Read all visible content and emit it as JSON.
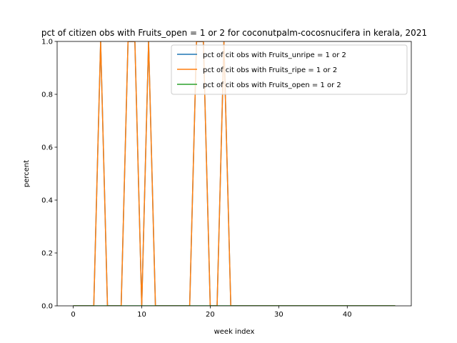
{
  "chart_data": {
    "type": "line",
    "title": "pct of citizen obs with Fruits_open = 1 or 2 for coconutpalm-cocosnucifera in kerala, 2021",
    "xlabel": "week index",
    "ylabel": "percent",
    "xlim": [
      -2.35,
      49.35
    ],
    "ylim": [
      0,
      1.0
    ],
    "xticks": [
      0,
      10,
      20,
      30,
      40
    ],
    "yticks": [
      0.0,
      0.2,
      0.4,
      0.6,
      0.8,
      1.0
    ],
    "xtick_labels": [
      "0",
      "10",
      "20",
      "30",
      "40"
    ],
    "ytick_labels": [
      "0.0",
      "0.2",
      "0.4",
      "0.6",
      "0.8",
      "1.0"
    ],
    "grid": false,
    "legend_position": "top-right",
    "x": [
      0,
      1,
      2,
      3,
      4,
      5,
      6,
      7,
      8,
      9,
      10,
      11,
      12,
      13,
      14,
      15,
      16,
      17,
      18,
      19,
      20,
      21,
      22,
      23,
      24,
      25,
      26,
      27,
      28,
      29,
      30,
      31,
      32,
      33,
      34,
      35,
      36,
      37,
      38,
      39,
      40,
      41,
      42,
      43,
      44,
      45,
      46,
      47
    ],
    "series": [
      {
        "name": "pct of cit obs with Fruits_unripe = 1 or 2",
        "color": "#1f77b4",
        "values": [
          0,
          0,
          0,
          0,
          1,
          0,
          0,
          0,
          1,
          1,
          0,
          1,
          0,
          0,
          0,
          0,
          0,
          0,
          1,
          1,
          0,
          0,
          1,
          0,
          0,
          0,
          0,
          0,
          0,
          0,
          0,
          0,
          0,
          0,
          0,
          0,
          0,
          0,
          0,
          0,
          0,
          0,
          0,
          0,
          0,
          0,
          0,
          0
        ]
      },
      {
        "name": "pct of cit obs with Fruits_ripe = 1 or 2",
        "color": "#ff7f0e",
        "values": [
          0,
          0,
          0,
          0,
          1,
          0,
          0,
          0,
          1,
          1,
          0,
          1,
          0,
          0,
          0,
          0,
          0,
          0,
          1,
          1,
          0,
          0,
          1,
          0,
          0,
          0,
          0,
          0,
          0,
          0,
          0,
          0,
          0,
          0,
          0,
          0,
          0,
          0,
          0,
          0,
          0,
          0,
          0,
          0,
          0,
          0,
          0,
          0
        ]
      },
      {
        "name": "pct of cit obs with Fruits_open = 1 or 2",
        "color": "#2ca02c",
        "values": [
          0,
          0,
          0,
          0,
          0,
          0,
          0,
          0,
          0,
          0,
          0,
          0,
          0,
          0,
          0,
          0,
          0,
          0,
          0,
          0,
          0,
          0,
          0,
          0,
          0,
          0,
          0,
          0,
          0,
          0,
          0,
          0,
          0,
          0,
          0,
          0,
          0,
          0,
          0,
          0,
          0,
          0,
          0,
          0,
          0,
          0,
          0,
          0
        ]
      }
    ]
  }
}
